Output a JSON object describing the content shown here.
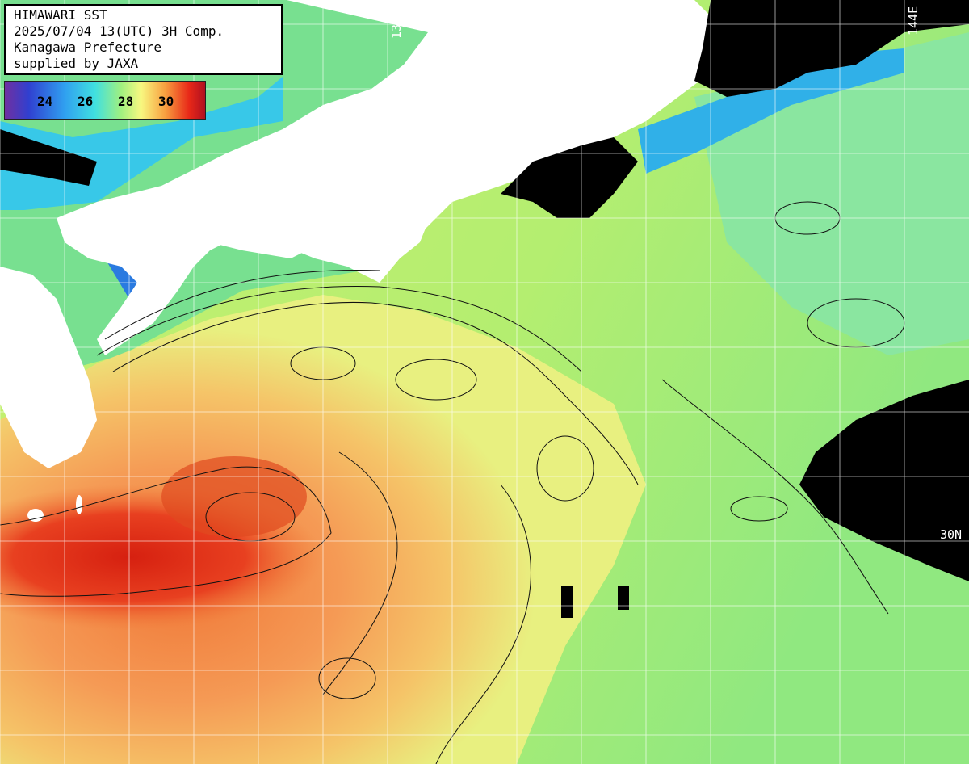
{
  "header": {
    "line1": "HIMAWARI SST",
    "line2": "2025/07/04 13(UTC) 3H Comp.",
    "line3": "Kanagawa Prefecture",
    "line4": "supplied by JAXA"
  },
  "legend": {
    "ticks": [
      "24",
      "26",
      "28",
      "30"
    ]
  },
  "grid_labels": {
    "lon_left": "138E",
    "lon_right": "144E",
    "lat_30": "30N"
  },
  "colors": {
    "land": "#ffffff",
    "cloud": "#000000",
    "sst_22": "#3040e0",
    "sst_24": "#30c0f0",
    "sst_26": "#60e080",
    "sst_27": "#a8f060",
    "sst_28": "#f0f080",
    "sst_29": "#f8b050",
    "sst_30": "#e83018"
  }
}
